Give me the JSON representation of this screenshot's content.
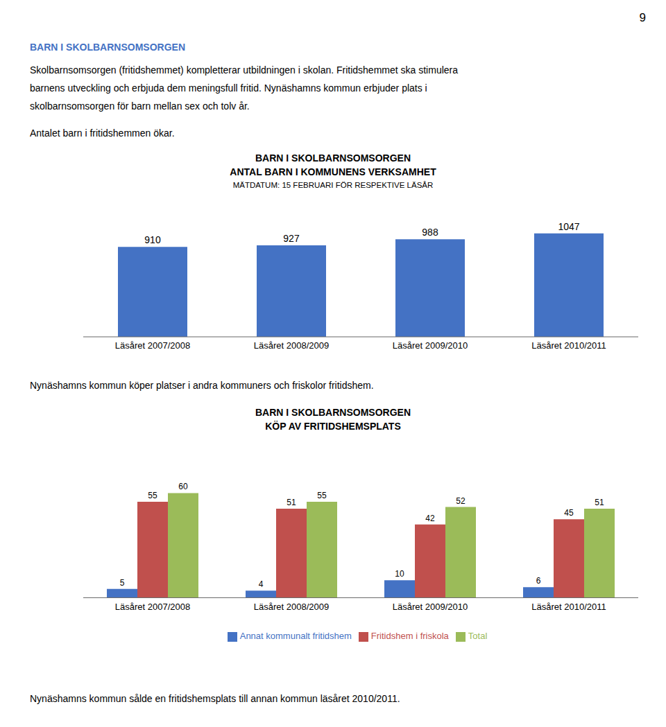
{
  "page_number": "9",
  "heading": {
    "text": "BARN I SKOLBARNSOMSORGEN",
    "color": "#4472C4"
  },
  "body_text": [
    [
      "Skolbarnsomsorgen (fritidshemmet) kompletterar utbildningen i skolan. Fritidshemmet ska stimulera",
      "barnens utveckling och erbjuda dem meningsfull fritid. Nynäshamns kommun erbjuder plats i",
      "skolbarnsomsorgen för barn mellan sex och tolv år."
    ],
    [
      "Antalet barn i fritidshemmen ökar."
    ]
  ],
  "middle_text": "Nynäshamns kommun köper platser i andra kommuners och friskolor fritidshem.",
  "bottom_text": "Nynäshamns kommun sålde en fritidshemsplats till annan kommun läsåret 2010/2011.",
  "chart_data": [
    {
      "type": "bar",
      "title": [
        "BARN I SKOLBARNSOMSORGEN",
        "ANTAL BARN I KOMMUNENS VERKSAMHET"
      ],
      "subtitle": "MÄTDATUM: 15 FEBRUARI FÖR RESPEKTIVE LÄSÅR",
      "categories": [
        "Läsåret 2007/2008",
        "Läsåret 2008/2009",
        "Läsåret 2009/2010",
        "Läsåret 2010/2011"
      ],
      "values": [
        910,
        927,
        988,
        1047
      ],
      "color": "#4472C4",
      "ylim": [
        0,
        1277.34
      ],
      "data_labels": true,
      "tick_labels": "x",
      "grid": false
    },
    {
      "type": "bar",
      "title": [
        "BARN I SKOLBARNSOMSORGEN",
        "KÖP AV FRITIDSHEMSPLATS"
      ],
      "categories": [
        "Läsåret 2007/2008",
        "Läsåret 2008/2009",
        "Läsåret 2009/2010",
        "Läsåret 2010/2011"
      ],
      "series": [
        {
          "name": "Annat kommunalt fritidshem",
          "color": "#4472C4",
          "values": [
            5,
            4,
            10,
            6
          ]
        },
        {
          "name": "Fritidshem i friskola",
          "color": "#C0504D",
          "values": [
            55,
            51,
            42,
            45
          ]
        },
        {
          "name": "Total",
          "color": "#9BBB59",
          "values": [
            60,
            55,
            52,
            51
          ]
        }
      ],
      "ylim": [
        0,
        82.8
      ],
      "data_labels": true,
      "tick_labels": "x",
      "legend": "bottom",
      "grid": false
    }
  ]
}
